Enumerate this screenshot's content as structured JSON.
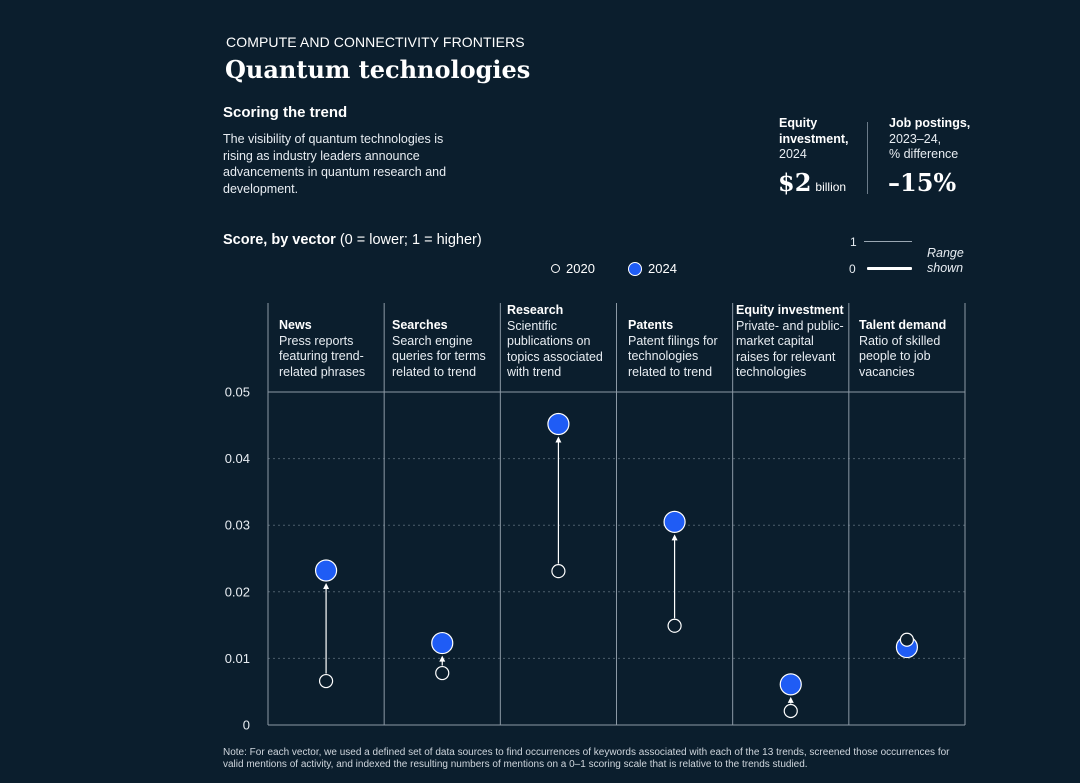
{
  "header": {
    "eyebrow": "COMPUTE AND CONNECTIVITY FRONTIERS",
    "title": "Quantum technologies"
  },
  "intro": {
    "subhead": "Scoring the trend",
    "description": "The visibility of quantum technologies is rising as industry leaders announce advancements in quantum research and development."
  },
  "stats": {
    "equity": {
      "label_bold_1": "Equity",
      "label_bold_2": "investment,",
      "label_year": "2024",
      "value": "$2",
      "unit": "billion"
    },
    "jobs": {
      "label_bold": "Job postings,",
      "label_line2": "2023–24,",
      "label_line3": "% difference",
      "value": "–15%"
    }
  },
  "score": {
    "title_bold": "Score, by vector",
    "title_rest": " (0 = lower; 1 = higher)"
  },
  "legend": {
    "y2020": "2020",
    "y2024": "2024"
  },
  "range_key": {
    "top": "1",
    "bottom": "0",
    "line1": "Range",
    "line2": "shown"
  },
  "vectors": [
    {
      "name": "News",
      "desc": "Press reports featuring trend-related phrases"
    },
    {
      "name": "Searches",
      "desc": "Search engine queries for terms related to trend"
    },
    {
      "name": "Research",
      "desc": "Scientific publications on topics associated with trend"
    },
    {
      "name": "Patents",
      "desc": "Patent filings for technologies related to trend"
    },
    {
      "name": "Equity investment",
      "desc": "Private- and public-market capital raises for relevant technologies"
    },
    {
      "name": "Talent demand",
      "desc": "Ratio of skilled people to job vacancies"
    }
  ],
  "chart_data": {
    "type": "scatter",
    "ylim": [
      0,
      0.05
    ],
    "yticks": [
      "0",
      "0.01",
      "0.02",
      "0.03",
      "0.04",
      "0.05"
    ],
    "grid": true,
    "categories": [
      "News",
      "Searches",
      "Research",
      "Patents",
      "Equity investment",
      "Talent demand"
    ],
    "series": [
      {
        "name": "2020",
        "values": [
          0.0066,
          0.0078,
          0.0231,
          0.0149,
          0.0021,
          0.0128
        ]
      },
      {
        "name": "2024",
        "values": [
          0.0232,
          0.0123,
          0.0452,
          0.0305,
          0.0061,
          0.0117
        ]
      }
    ]
  },
  "note": "Note: For each vector, we used a defined set of data sources to find occurrences of keywords associated with each of the 13 trends, screened those occurrences for valid mentions of activity, and indexed the resulting numbers of mentions on a 0–1 scoring scale that is relative to the trends studied."
}
